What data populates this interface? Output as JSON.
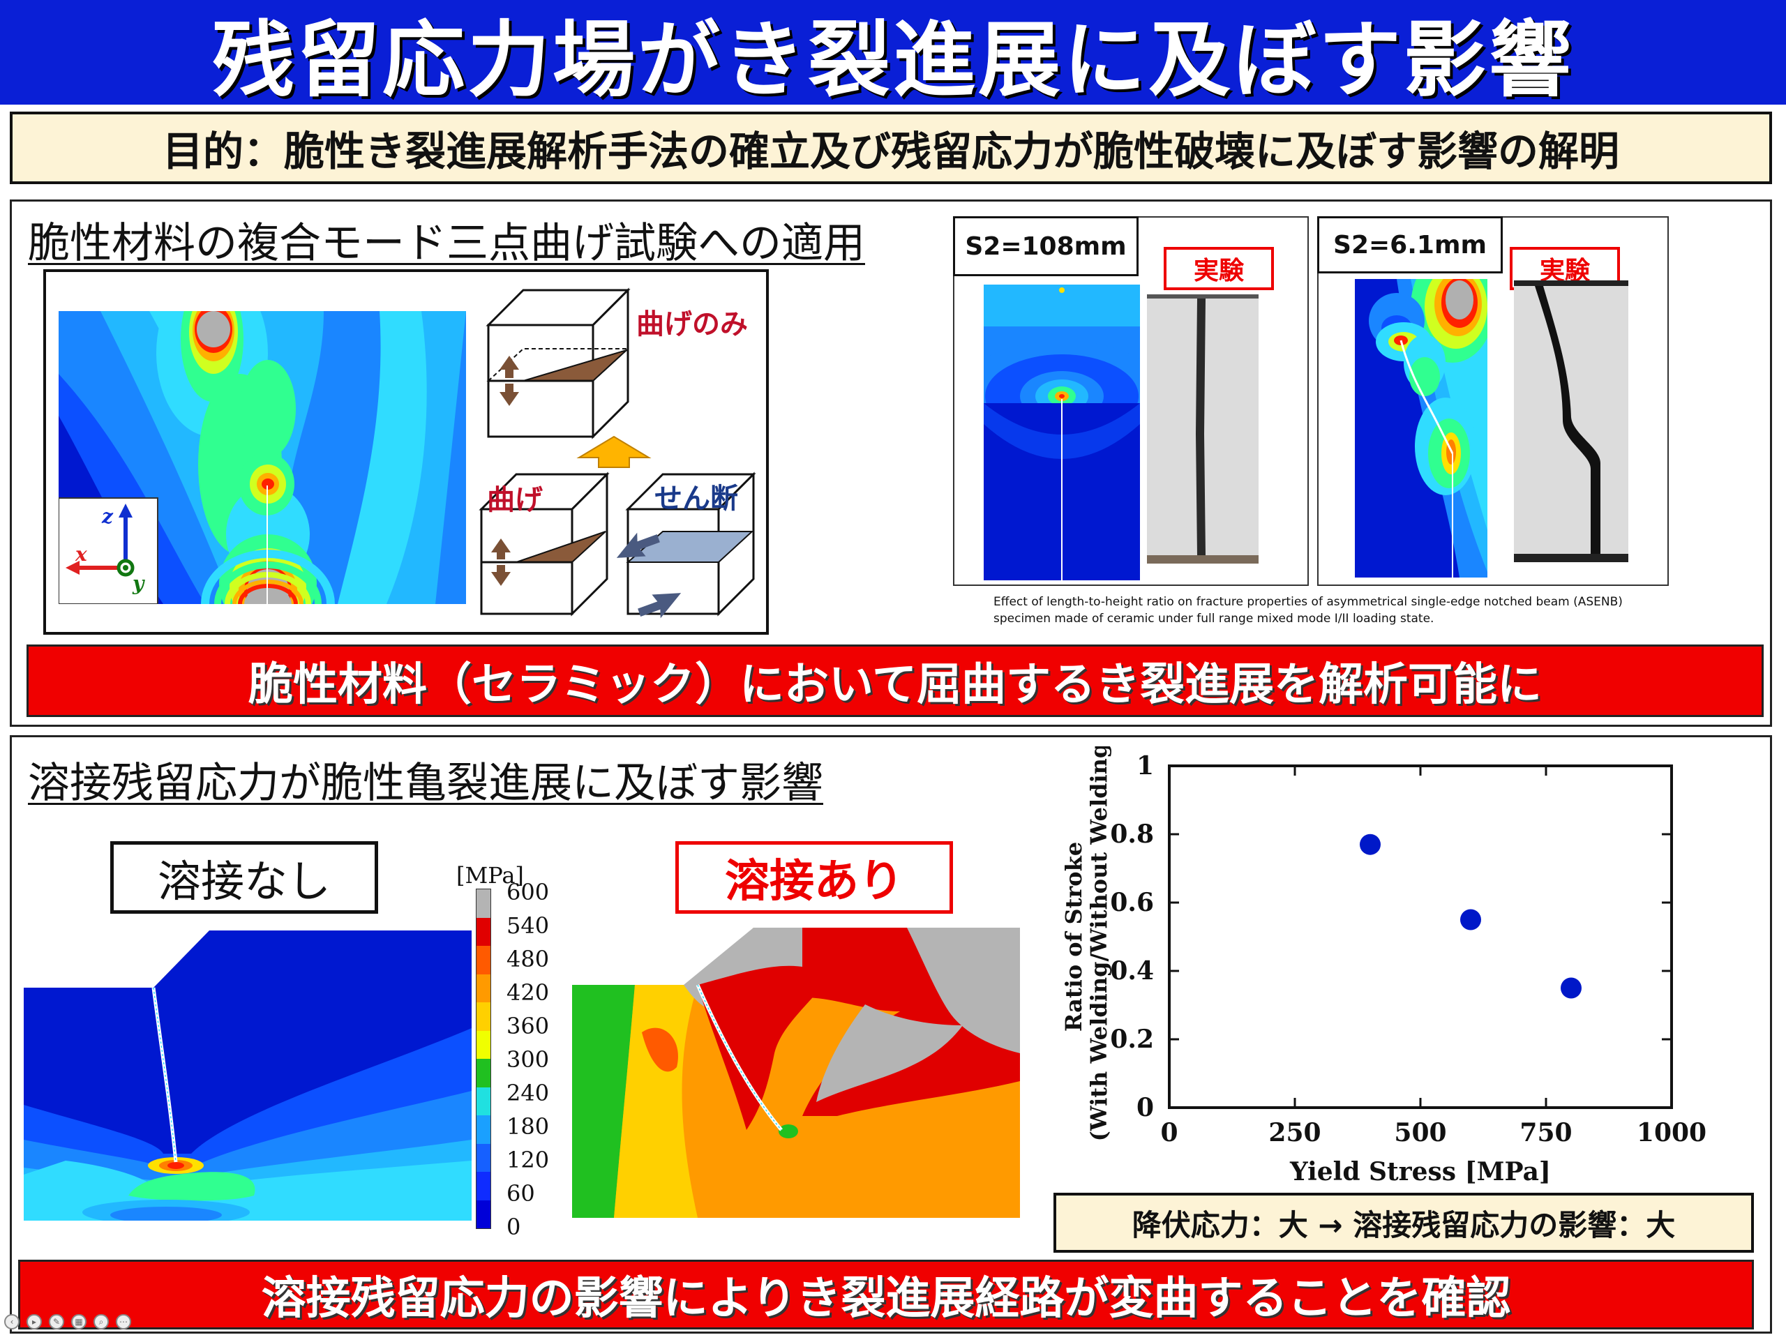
{
  "title": "残留応力場がき裂進展に及ぼす影響",
  "purpose": "目的：脆性き裂進展解析手法の確立及び残留応力が脆性破壊に及ぼす影響の解明",
  "section1": {
    "heading": "脆性材料の複合モード三点曲げ試験への適用",
    "schematic": {
      "bending_only": "曲げのみ",
      "bending": "曲げ",
      "shear": "せん断",
      "axis_z": "z",
      "axis_x": "x",
      "axis_y": "y"
    },
    "case1": {
      "label": "S2=108mm",
      "experiment": "実験"
    },
    "case2": {
      "label": "S2=6.1mm",
      "experiment": "実験"
    },
    "caption_line1": "Effect of length-to-height ratio on fracture properties of asymmetrical single-edge notched beam (ASENB)",
    "caption_line2": "specimen made of ceramic under full range mixed mode I/II loading state.",
    "conclusion": "脆性材料（セラミック）において屈曲するき裂進展を解析可能に"
  },
  "section2": {
    "heading": "溶接残留応力が脆性亀裂進展に及ぼす影響",
    "no_weld_label": "溶接なし",
    "weld_label": "溶接あり",
    "colorbar": {
      "unit": "[MPa]",
      "ticks": [
        "600",
        "540",
        "480",
        "420",
        "360",
        "300",
        "240",
        "180",
        "120",
        "60",
        "0"
      ],
      "colors": [
        "#b4b4b4",
        "#e00000",
        "#ff5a00",
        "#ff9a00",
        "#ffd000",
        "#f0ff00",
        "#20c020",
        "#20e0e0",
        "#1aa0ff",
        "#1660ff",
        "#0f2cff",
        "#0000d8"
      ]
    },
    "finding": "降伏応力：大 → 溶接残留応力の影響：大",
    "conclusion": "溶接残留応力の影響によりき裂進展経路が変曲することを確認"
  },
  "chart_data": {
    "type": "scatter",
    "title": "",
    "xlabel": "Yield Stress [MPa]",
    "ylabel_line1": "Ratio of Stroke",
    "ylabel_line2": "(With Welding/Without Welding)",
    "xlim": [
      0,
      1000
    ],
    "ylim": [
      0,
      1
    ],
    "x_ticks": [
      "0",
      "250",
      "500",
      "750",
      "1000"
    ],
    "y_ticks": [
      "0",
      "0.2",
      "0.4",
      "0.6",
      "0.8",
      "1"
    ],
    "grid": false,
    "series": [
      {
        "color": "#0018c8",
        "points": [
          {
            "x": 400,
            "y": 0.77
          },
          {
            "x": 600,
            "y": 0.55
          },
          {
            "x": 800,
            "y": 0.35
          }
        ]
      }
    ]
  }
}
